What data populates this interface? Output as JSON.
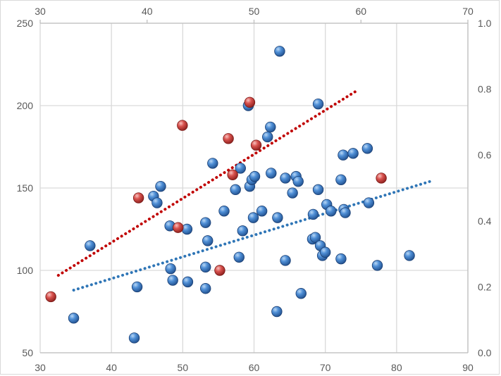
{
  "chart_data": {
    "type": "scatter",
    "title": "",
    "grid": true,
    "legend": "none",
    "axes": {
      "x_bottom": {
        "range": [
          30,
          90
        ],
        "ticks": [
          "30",
          "40",
          "50",
          "60",
          "70",
          "80",
          "90"
        ]
      },
      "x_top": {
        "range": [
          30,
          70
        ],
        "ticks": [
          "30",
          "40",
          "50",
          "60",
          "70"
        ]
      },
      "y_left": {
        "range": [
          50,
          250
        ],
        "ticks": [
          "50",
          "100",
          "150",
          "200",
          "250"
        ]
      },
      "y_right": {
        "range": [
          0.0,
          1.0
        ],
        "ticks": [
          "0.0",
          "0.2",
          "0.4",
          "0.6",
          "0.8",
          "1.0"
        ]
      }
    },
    "series": [
      {
        "color": "#2e75b6",
        "axes": "bottom-left",
        "points": [
          [
            34.7,
            71
          ],
          [
            37,
            115
          ],
          [
            43.2,
            59
          ],
          [
            43.6,
            90
          ],
          [
            45.9,
            145
          ],
          [
            46.4,
            141
          ],
          [
            46.9,
            151
          ],
          [
            48.2,
            127
          ],
          [
            48.3,
            101
          ],
          [
            48.6,
            94
          ],
          [
            50.6,
            125
          ],
          [
            50.7,
            93
          ],
          [
            53.2,
            129
          ],
          [
            53.2,
            102
          ],
          [
            53.2,
            89
          ],
          [
            53.5,
            118
          ],
          [
            54.2,
            165
          ],
          [
            55.8,
            136
          ],
          [
            57.4,
            149
          ],
          [
            57.9,
            108
          ],
          [
            58.1,
            162
          ],
          [
            58.4,
            124
          ],
          [
            59.2,
            200
          ],
          [
            59.4,
            151
          ],
          [
            59.7,
            155
          ],
          [
            60.1,
            157
          ],
          [
            59.9,
            132
          ],
          [
            61.1,
            136
          ],
          [
            61.9,
            181
          ],
          [
            62.3,
            187
          ],
          [
            62.4,
            159
          ],
          [
            63.2,
            75
          ],
          [
            63.3,
            132
          ],
          [
            63.6,
            233
          ],
          [
            64.4,
            156
          ],
          [
            64.4,
            106
          ],
          [
            65.4,
            147
          ],
          [
            65.9,
            157
          ],
          [
            66.2,
            154
          ],
          [
            66.6,
            86
          ],
          [
            68.2,
            119
          ],
          [
            68.3,
            134
          ],
          [
            68.6,
            120
          ],
          [
            69,
            201
          ],
          [
            69,
            149
          ],
          [
            69.3,
            115
          ],
          [
            69.6,
            109
          ],
          [
            70,
            111
          ],
          [
            70.2,
            140
          ],
          [
            70.8,
            136
          ],
          [
            72.2,
            155
          ],
          [
            72.2,
            107
          ],
          [
            72.5,
            170
          ],
          [
            72.6,
            137
          ],
          [
            72.8,
            135
          ],
          [
            73.9,
            171
          ],
          [
            75.9,
            174
          ],
          [
            76.1,
            141
          ],
          [
            77.3,
            103
          ],
          [
            81.8,
            109
          ]
        ]
      },
      {
        "color": "#c0504d",
        "axes": "top-right",
        "points": [
          [
            31,
            0.17
          ],
          [
            39.2,
            0.47
          ],
          [
            43.3,
            0.69
          ],
          [
            42.9,
            0.38
          ],
          [
            47.6,
            0.65
          ],
          [
            46.8,
            0.25
          ],
          [
            48,
            0.54
          ],
          [
            49.6,
            0.76
          ],
          [
            50.2,
            0.63
          ],
          [
            61.9,
            0.53
          ]
        ]
      }
    ],
    "trendlines": [
      {
        "color": "#2e75b6",
        "style": "dotted",
        "axes": "bottom-left",
        "from": [
          34.7,
          88
        ],
        "to": [
          84.7,
          154
        ]
      },
      {
        "color": "#c00000",
        "style": "dotted",
        "axes": "top-right",
        "from": [
          31.7,
          0.235
        ],
        "to": [
          59.6,
          0.795
        ]
      }
    ]
  }
}
